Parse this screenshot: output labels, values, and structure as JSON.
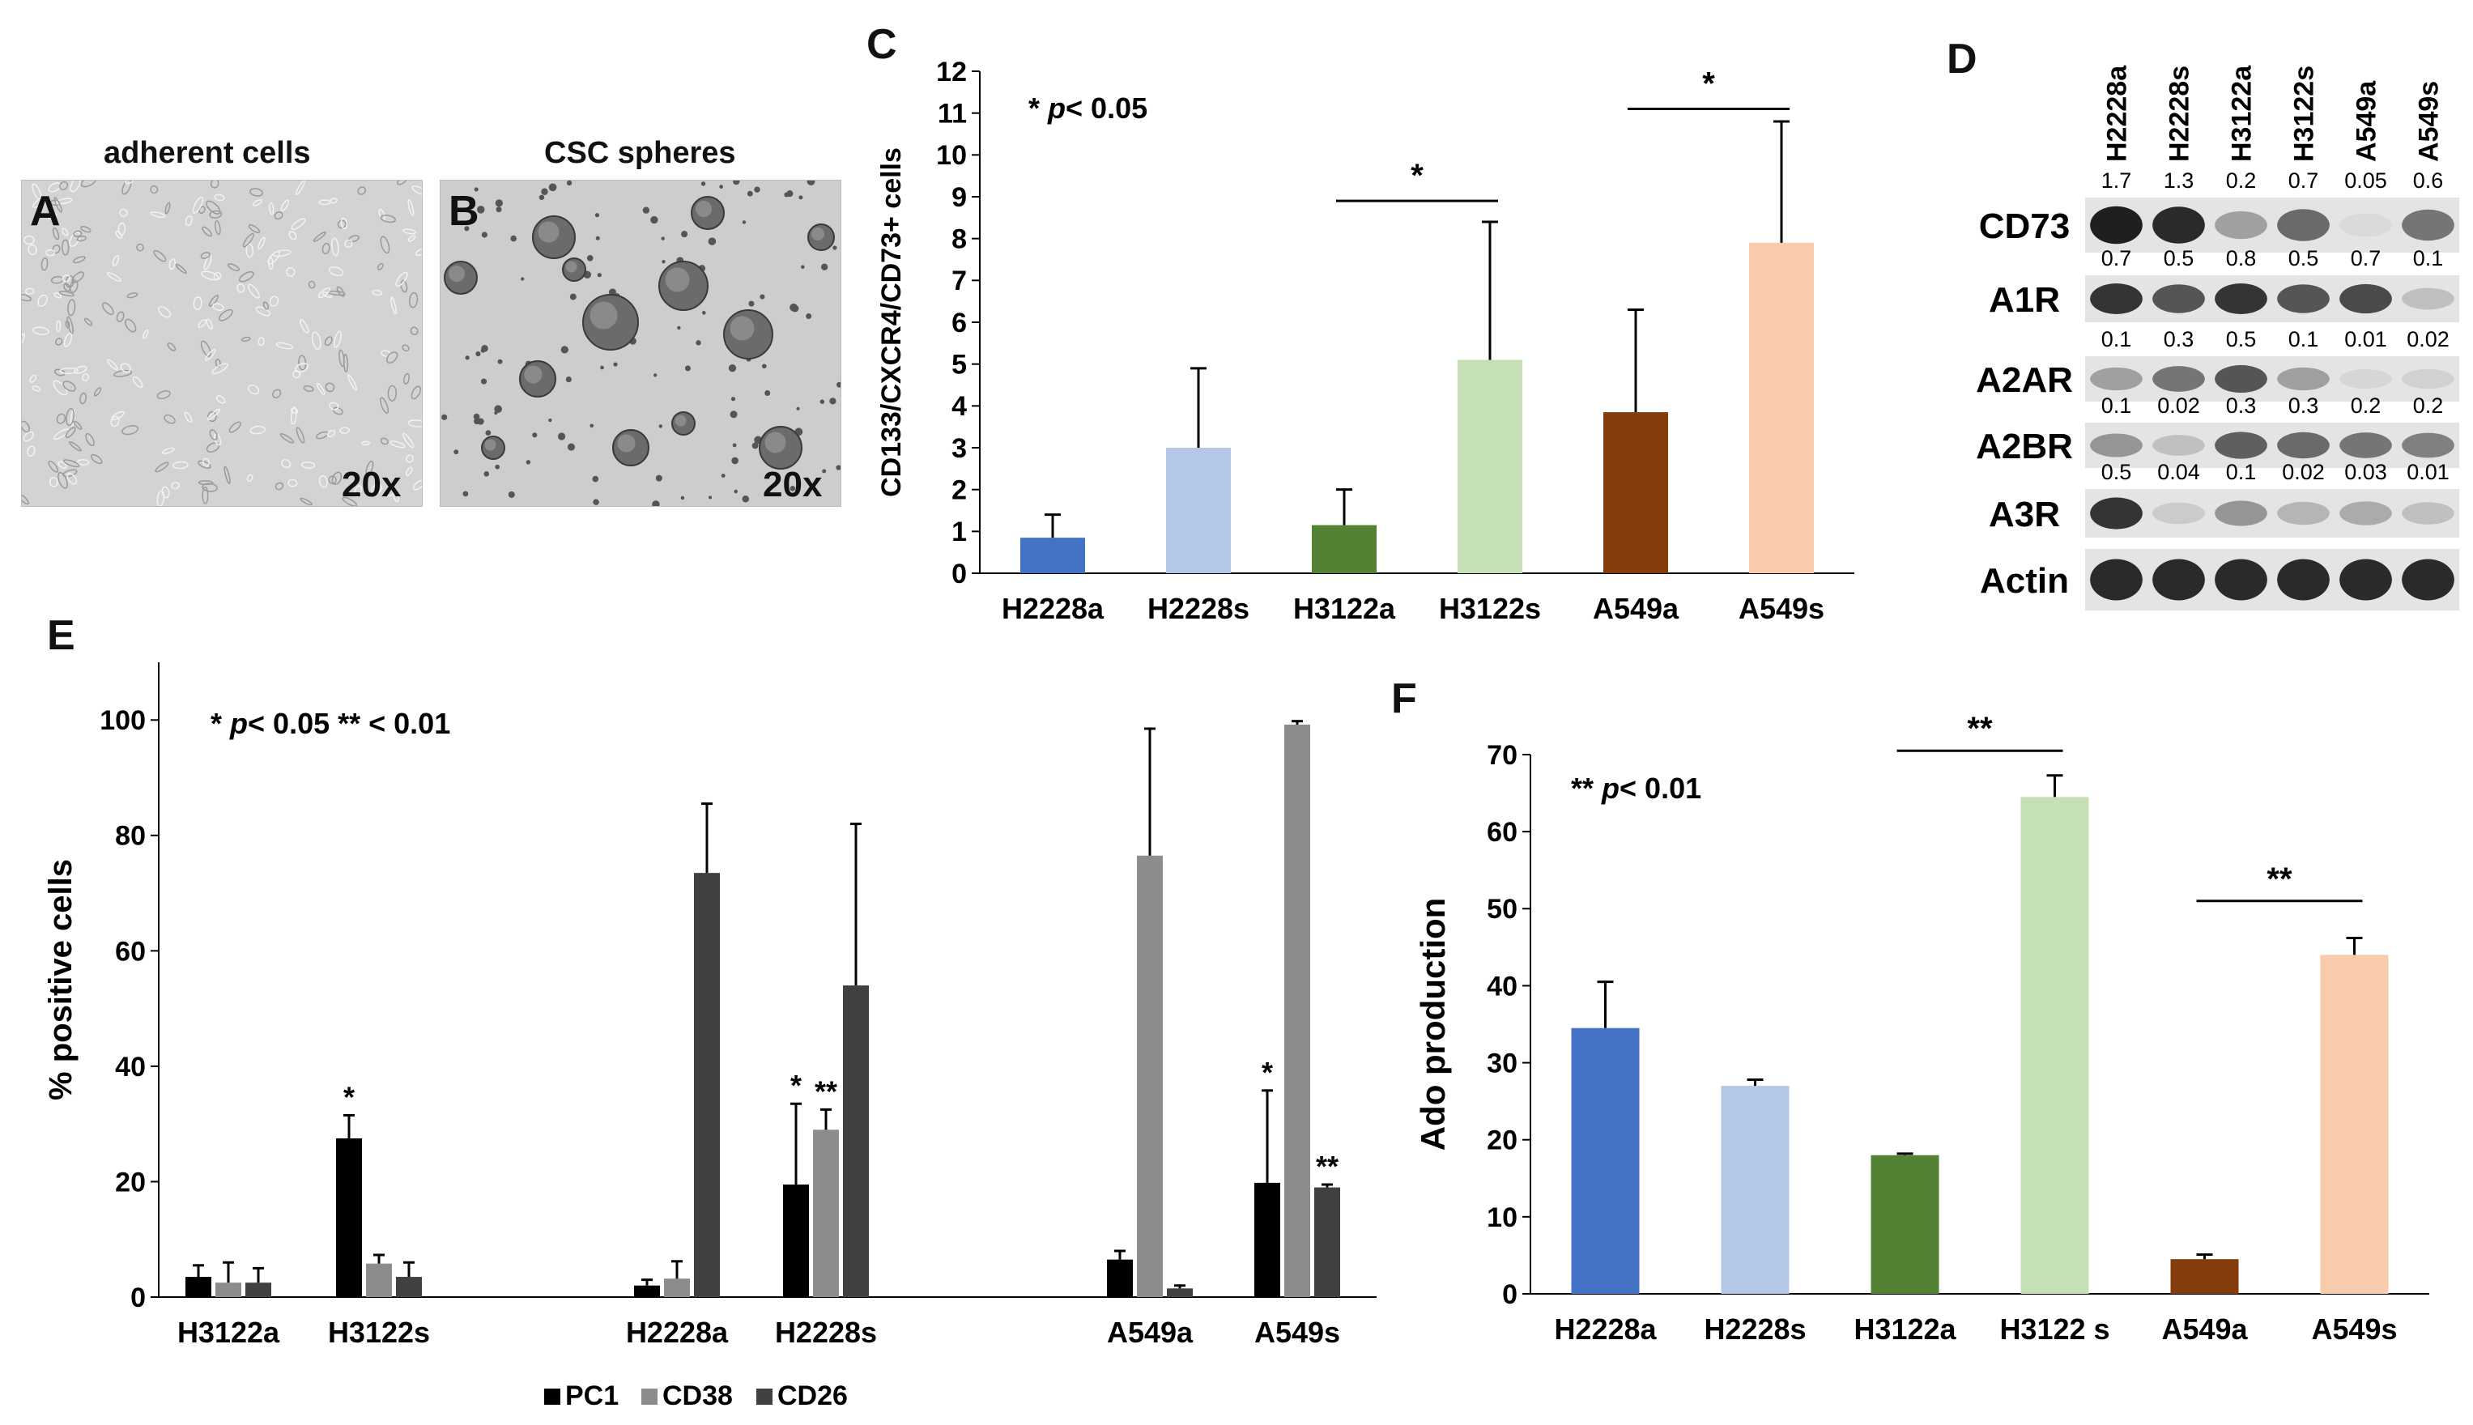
{
  "panels": {
    "a_label": "A",
    "b_label": "B",
    "c_label": "C",
    "d_label": "D",
    "e_label": "E",
    "f_label": "F"
  },
  "microscopy": {
    "a_title": "adherent cells",
    "b_title": "CSC spheres",
    "a_magnification": "20x",
    "b_magnification": "20x"
  },
  "western": {
    "lanes": [
      "H2228a",
      "H2228s",
      "H3122a",
      "H3122s",
      "A549a",
      "A549s"
    ],
    "bands": [
      {
        "name": "CD73",
        "quant": [
          "1.7",
          "1.3",
          "0.2",
          "0.7",
          "0.05",
          "0.6"
        ],
        "intensity": [
          0.95,
          0.9,
          0.35,
          0.6,
          0.08,
          0.55
        ]
      },
      {
        "name": "A1R",
        "quant": [
          "0.7",
          "0.5",
          "0.8",
          "0.5",
          "0.7",
          "0.1"
        ],
        "intensity": [
          0.85,
          0.7,
          0.85,
          0.7,
          0.75,
          0.2
        ]
      },
      {
        "name": "A2AR",
        "quant": [
          "0.1",
          "0.3",
          "0.5",
          "0.1",
          "0.01",
          "0.02"
        ],
        "intensity": [
          0.35,
          0.55,
          0.7,
          0.35,
          0.1,
          0.12
        ]
      },
      {
        "name": "A2BR",
        "quant": [
          "0.1",
          "0.02",
          "0.3",
          "0.3",
          "0.2",
          "0.2"
        ],
        "intensity": [
          0.4,
          0.2,
          0.65,
          0.6,
          0.55,
          0.5
        ]
      },
      {
        "name": "A3R",
        "quant": [
          "0.5",
          "0.04",
          "0.1",
          "0.02",
          "0.03",
          "0.01"
        ],
        "intensity": [
          0.85,
          0.15,
          0.4,
          0.25,
          0.3,
          0.2
        ]
      },
      {
        "name": "Actin",
        "quant": [],
        "intensity": [
          0.9,
          0.9,
          0.9,
          0.9,
          0.9,
          0.9
        ]
      }
    ]
  },
  "chart_data": [
    {
      "id": "C",
      "type": "bar",
      "title": "",
      "ylabel": "CD133/CXCR4/CD73+ cells",
      "xlabel": "",
      "categories": [
        "H2228a",
        "H2228s",
        "H3122a",
        "H3122s",
        "A549a",
        "A549s"
      ],
      "values": [
        0.85,
        3.0,
        1.15,
        5.1,
        3.85,
        7.9
      ],
      "errors": [
        0.55,
        1.9,
        0.85,
        3.3,
        2.45,
        2.9
      ],
      "colors": [
        "#4472c4",
        "#b4c7e7",
        "#548235",
        "#c5e0b4",
        "#843c0c",
        "#f8cbad"
      ],
      "ylim": [
        0,
        12
      ],
      "yticks": [
        "0",
        "1",
        "2",
        "3",
        "4",
        "5",
        "6",
        "7",
        "8",
        "9",
        "10",
        "11",
        "12"
      ],
      "annotation": {
        "star": "*",
        "p": "p",
        "rest": "< 0.05"
      },
      "significance": [
        {
          "from": 2,
          "to": 3,
          "label": "*",
          "y": 8.9
        },
        {
          "from": 4,
          "to": 5,
          "label": "*",
          "y": 11.1
        }
      ]
    },
    {
      "id": "E",
      "type": "bar",
      "title": "",
      "ylabel": "% positive cells",
      "xlabel": "",
      "categories": [
        "H3122a",
        "H3122s",
        "H2228a",
        "H2228s",
        "A549a",
        "A549s"
      ],
      "series": [
        {
          "name": "PC1",
          "color": "#000000",
          "values": [
            3.5,
            27.5,
            2.0,
            19.5,
            6.5,
            19.8
          ],
          "errors": [
            2.0,
            4.0,
            1.0,
            14.0,
            1.5,
            16.0
          ],
          "marks": [
            "",
            "*",
            "",
            "*",
            "",
            "*"
          ]
        },
        {
          "name": "CD38",
          "color": "#8c8c8c",
          "values": [
            2.5,
            5.8,
            3.2,
            29.0,
            76.5,
            99.2
          ],
          "errors": [
            3.5,
            1.5,
            3.0,
            3.5,
            22.0,
            0.6
          ],
          "marks": [
            "",
            "",
            "",
            "**",
            "",
            ""
          ]
        },
        {
          "name": "CD26",
          "color": "#404040",
          "values": [
            2.5,
            3.5,
            73.5,
            54.0,
            1.5,
            19.0
          ],
          "errors": [
            2.5,
            2.5,
            12.0,
            28.0,
            0.5,
            0.5
          ],
          "marks": [
            "",
            "",
            "",
            "",
            "",
            "**"
          ]
        }
      ],
      "ylim": [
        0,
        110
      ],
      "yticks": [
        "0",
        "20",
        "40",
        "60",
        "80",
        "100"
      ],
      "annotation": {
        "star": "*",
        "p": "p",
        "rest": "< 0.05 ** < 0.01"
      },
      "legend": "bottom"
    },
    {
      "id": "F",
      "type": "bar",
      "title": "",
      "ylabel": "Ado production",
      "xlabel": "",
      "categories": [
        "H2228a",
        "H2228s",
        "H3122a",
        "H3122 s",
        "A549a",
        "A549s"
      ],
      "values": [
        34.5,
        27.0,
        18.0,
        64.5,
        4.5,
        44.0
      ],
      "errors": [
        6.0,
        0.8,
        0.2,
        2.8,
        0.6,
        2.2
      ],
      "colors": [
        "#4472c4",
        "#b4c7e7",
        "#548235",
        "#c5e0b4",
        "#843c0c",
        "#f8cbad"
      ],
      "ylim": [
        0,
        70
      ],
      "yticks": [
        "0",
        "10",
        "20",
        "30",
        "40",
        "50",
        "60",
        "70"
      ],
      "annotation": {
        "star": "**",
        "p": "p",
        "rest": "< 0.01"
      },
      "significance": [
        {
          "from": 2,
          "to": 3,
          "label": "**",
          "y": 70.5
        },
        {
          "from": 4,
          "to": 5,
          "label": "**",
          "y": 51
        }
      ]
    }
  ]
}
